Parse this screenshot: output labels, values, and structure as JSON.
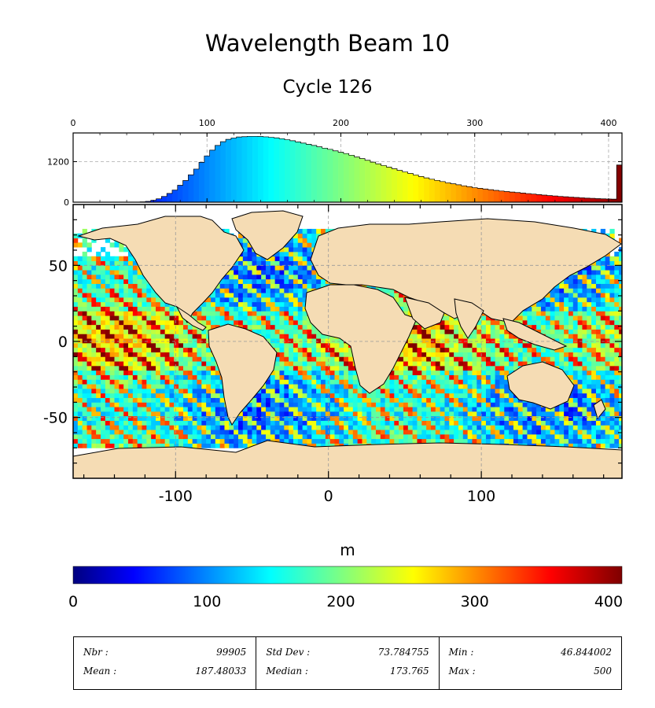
{
  "chart_data": [
    {
      "type": "histogram",
      "title": "Wavelength Beam 10",
      "subtitle": "Cycle 126",
      "x_ticks": [
        0,
        100,
        200,
        300,
        400
      ],
      "y_ticks": [
        0,
        1200
      ],
      "xlim": [
        0,
        410
      ],
      "ylim": [
        0,
        2050
      ],
      "grid": true,
      "bin_width": 4,
      "bin_starts": [
        50,
        54,
        58,
        62,
        66,
        70,
        74,
        78,
        82,
        86,
        90,
        94,
        98,
        102,
        106,
        110,
        114,
        118,
        122,
        126,
        130,
        134,
        138,
        142,
        146,
        150,
        154,
        158,
        162,
        166,
        170,
        174,
        178,
        182,
        186,
        190,
        194,
        198,
        202,
        206,
        210,
        214,
        218,
        222,
        226,
        230,
        234,
        238,
        242,
        246,
        250,
        254,
        258,
        262,
        266,
        270,
        274,
        278,
        282,
        286,
        290,
        294,
        298,
        302,
        306,
        310,
        314,
        318,
        322,
        326,
        330,
        334,
        338,
        342,
        346,
        350,
        354,
        358,
        362,
        366,
        370,
        374,
        378,
        382,
        386,
        390,
        394,
        398,
        402,
        406
      ],
      "counts": [
        10,
        25,
        55,
        100,
        170,
        260,
        360,
        500,
        640,
        810,
        980,
        1180,
        1370,
        1540,
        1680,
        1790,
        1860,
        1900,
        1930,
        1940,
        1950,
        1950,
        1945,
        1935,
        1920,
        1905,
        1880,
        1850,
        1820,
        1785,
        1750,
        1715,
        1680,
        1640,
        1600,
        1565,
        1520,
        1480,
        1440,
        1390,
        1340,
        1290,
        1240,
        1185,
        1135,
        1085,
        1040,
        990,
        940,
        895,
        850,
        805,
        760,
        720,
        680,
        645,
        610,
        575,
        545,
        515,
        485,
        460,
        430,
        410,
        390,
        370,
        350,
        330,
        315,
        300,
        285,
        270,
        255,
        240,
        225,
        210,
        195,
        185,
        170,
        160,
        150,
        140,
        130,
        120,
        115,
        105,
        100,
        95,
        90,
        1100
      ]
    },
    {
      "type": "heatmap",
      "description_axes": "longitude vs latitude",
      "x_ticks": [
        -100,
        0,
        100
      ],
      "y_ticks": [
        -50,
        0,
        50
      ],
      "xlim": [
        -167,
        192
      ],
      "ylim": [
        -90,
        90
      ],
      "grid": true,
      "colorbar": {
        "label": "m",
        "range": [
          0,
          410
        ],
        "ticks": [
          0,
          100,
          200,
          300,
          400
        ],
        "colormap": "jet"
      },
      "land_color": "#f5dcb4"
    }
  ],
  "stats": {
    "col1": [
      {
        "label": "Nbr :",
        "value": "99905"
      },
      {
        "label": "Mean :",
        "value": "187.48033"
      }
    ],
    "col2": [
      {
        "label": "Std Dev :",
        "value": "73.784755"
      },
      {
        "label": "Median :",
        "value": "173.765"
      }
    ],
    "col3": [
      {
        "label": "Min :",
        "value": "46.844002"
      },
      {
        "label": "Max :",
        "value": "500"
      }
    ]
  }
}
